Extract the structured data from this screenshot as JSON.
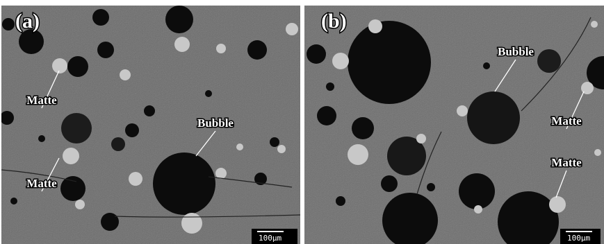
{
  "panels": [
    {
      "label": "(a)",
      "annotations": [
        "Matte",
        "Bubble",
        "Matte"
      ],
      "scale_bar": "100μm"
    },
    {
      "label": "(b)",
      "annotations": [
        "Bubble",
        "Matte",
        "Matte"
      ],
      "scale_bar": "100μm"
    }
  ]
}
